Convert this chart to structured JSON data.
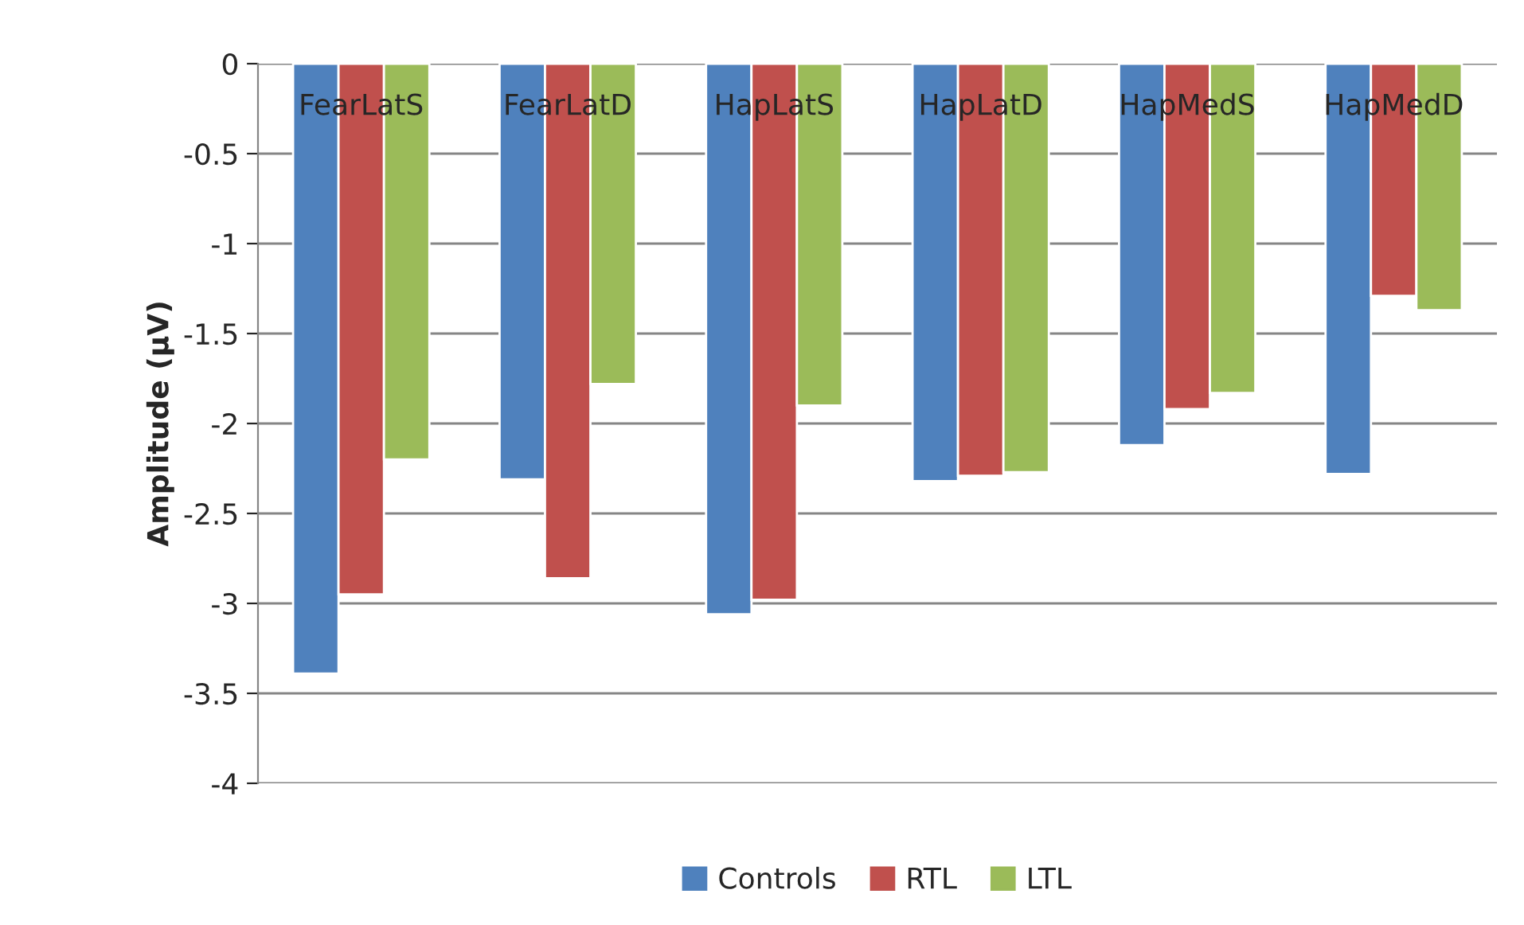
{
  "chart_data": {
    "type": "bar",
    "ylabel": "Amplitude (µV)",
    "categories": [
      "FearLatS",
      "FearLatD",
      "HapLatS",
      "HapLatD",
      "HapMedS",
      "HapMedD"
    ],
    "series": [
      {
        "name": "Controls",
        "color": "#4f81bd",
        "values": [
          -3.39,
          -2.31,
          -3.06,
          -2.32,
          -2.12,
          -2.28
        ]
      },
      {
        "name": "RTL",
        "color": "#c0504d",
        "values": [
          -2.95,
          -2.86,
          -2.98,
          -2.29,
          -1.92,
          -1.29
        ]
      },
      {
        "name": "LTL",
        "color": "#9bbb59",
        "values": [
          -2.2,
          -1.78,
          -1.9,
          -2.27,
          -1.83,
          -1.37
        ]
      }
    ],
    "ylim": [
      -4,
      0
    ],
    "yticks": [
      {
        "value": 0,
        "label": "0"
      },
      {
        "value": -0.5,
        "label": "-0.5"
      },
      {
        "value": -1,
        "label": "-1"
      },
      {
        "value": -1.5,
        "label": "-1.5"
      },
      {
        "value": -2,
        "label": "-2"
      },
      {
        "value": -2.5,
        "label": "-2.5"
      },
      {
        "value": -3,
        "label": "-3"
      },
      {
        "value": -3.5,
        "label": "-3.5"
      },
      {
        "value": -4,
        "label": "-4"
      }
    ],
    "grid": "y",
    "legend": "bottom"
  }
}
